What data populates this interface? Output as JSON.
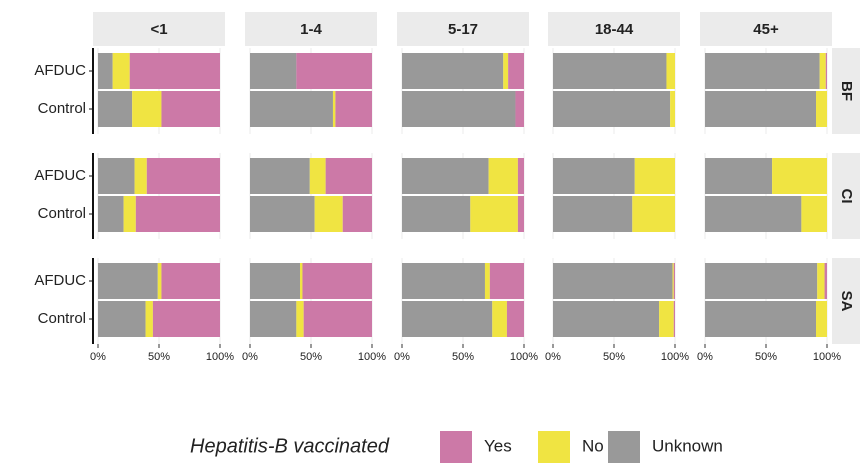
{
  "chart_data": {
    "type": "bar",
    "orientation": "horizontal",
    "stacked": true,
    "columns": [
      "<1",
      "1-4",
      "5-17",
      "18-44",
      "45+"
    ],
    "rows": [
      "BF",
      "CI",
      "SA"
    ],
    "categories": [
      "AFDUC",
      "Control"
    ],
    "legend_title": "Hepatitis-B vaccinated",
    "legend_position": "bottom",
    "xlim": [
      0,
      100
    ],
    "xticks": [
      {
        "value": 0,
        "label": "0%"
      },
      {
        "value": 50,
        "label": "50%"
      },
      {
        "value": 100,
        "label": "100%"
      }
    ],
    "grid": true,
    "series": [
      {
        "name": "Yes",
        "color": "#cc79a7",
        "values": [
          [
            [
              74,
              48
            ],
            [
              62,
              30
            ],
            [
              13,
              7
            ],
            [
              0,
              0
            ],
            [
              1,
              0
            ]
          ],
          [
            [
              60,
              69
            ],
            [
              38,
              24
            ],
            [
              5,
              5
            ],
            [
              0,
              0
            ],
            [
              0,
              0
            ]
          ],
          [
            [
              48,
              55
            ],
            [
              57,
              56
            ],
            [
              28,
              14
            ],
            [
              1,
              1
            ],
            [
              2,
              0
            ]
          ]
        ]
      },
      {
        "name": "No",
        "color": "#f0e442",
        "values": [
          [
            [
              14,
              24
            ],
            [
              0,
              2
            ],
            [
              4,
              0
            ],
            [
              7,
              4
            ],
            [
              5,
              9
            ]
          ],
          [
            [
              10,
              10
            ],
            [
              13,
              23
            ],
            [
              24,
              39
            ],
            [
              33,
              35
            ],
            [
              45,
              21
            ]
          ],
          [
            [
              3,
              6
            ],
            [
              2,
              6
            ],
            [
              4,
              12
            ],
            [
              1,
              12
            ],
            [
              6,
              9
            ]
          ]
        ]
      },
      {
        "name": "Unknown",
        "color": "#999999",
        "values": [
          [
            [
              12,
              28
            ],
            [
              38,
              68
            ],
            [
              83,
              93
            ],
            [
              93,
              96
            ],
            [
              94,
              91
            ]
          ],
          [
            [
              30,
              21
            ],
            [
              49,
              53
            ],
            [
              71,
              56
            ],
            [
              67,
              65
            ],
            [
              55,
              79
            ]
          ],
          [
            [
              49,
              39
            ],
            [
              41,
              38
            ],
            [
              68,
              74
            ],
            [
              98,
              87
            ],
            [
              92,
              91
            ]
          ]
        ]
      }
    ]
  }
}
